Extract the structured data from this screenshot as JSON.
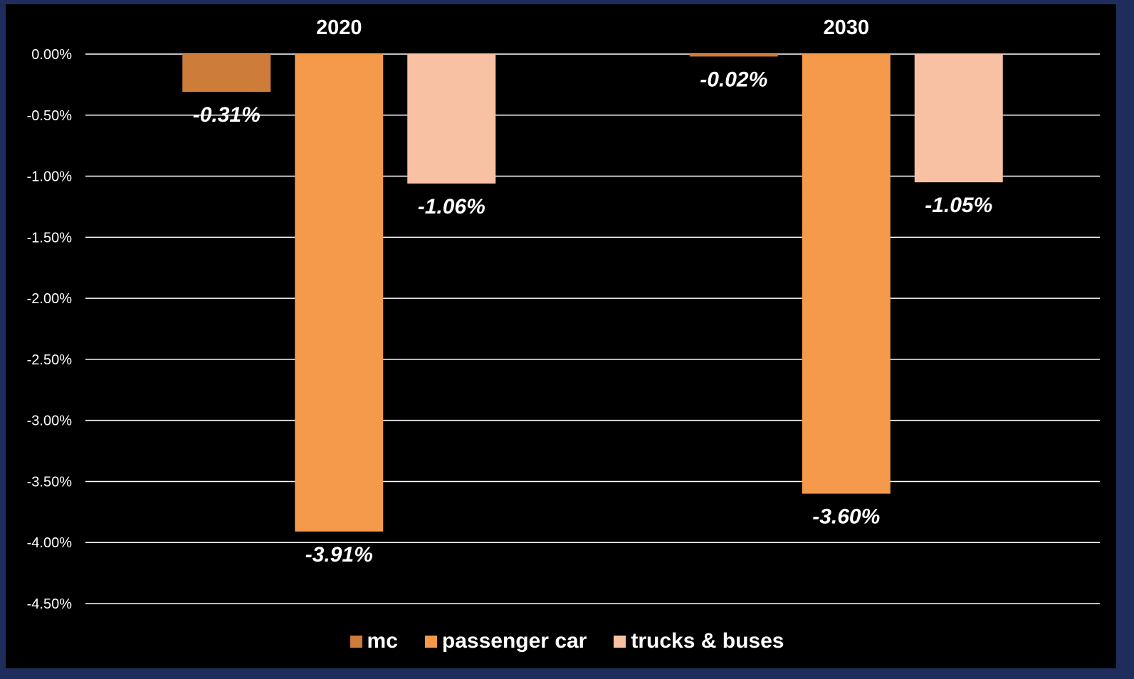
{
  "chart_data": {
    "type": "bar",
    "categories": [
      "2020",
      "2030"
    ],
    "series": [
      {
        "name": "mc",
        "values": [
          -0.31,
          -0.02
        ],
        "labels": [
          "-0.31%",
          "-0.02%"
        ],
        "color": "#cd7c3a"
      },
      {
        "name": "passenger car",
        "values": [
          -3.91,
          -3.6
        ],
        "labels": [
          "-3.91%",
          "-3.60%"
        ],
        "color": "#f5994a"
      },
      {
        "name": "trucks & buses",
        "values": [
          -1.06,
          -1.05
        ],
        "labels": [
          "-1.06%",
          "-1.05%"
        ],
        "color": "#f9c1a4"
      }
    ],
    "ylim": [
      -4.5,
      0
    ],
    "yticks": [
      0,
      -0.5,
      -1.0,
      -1.5,
      -2.0,
      -2.5,
      -3.0,
      -3.5,
      -4.0,
      -4.5
    ],
    "ytick_labels": [
      "0.00%",
      "-0.50%",
      "-1.00%",
      "-1.50%",
      "-2.00%",
      "-2.50%",
      "-3.00%",
      "-3.50%",
      "-4.00%",
      "-4.50%"
    ],
    "category_position": "top",
    "grid": true,
    "legend_position": "bottom",
    "title": "",
    "xlabel": "",
    "ylabel": ""
  },
  "colors": {
    "background": "#000000",
    "frame": "#1f2d5c",
    "grid": "#ffffff",
    "text": "#ffffff"
  }
}
